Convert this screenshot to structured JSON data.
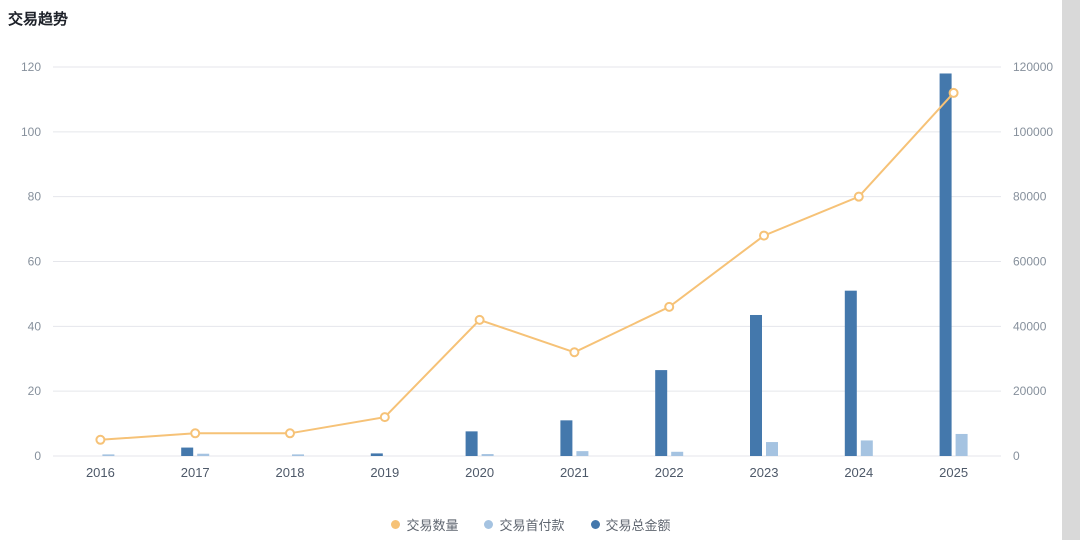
{
  "page": {
    "title": "交易趋势"
  },
  "chart_data": {
    "type": "bar+line",
    "title": "交易趋势",
    "categories": [
      "2016",
      "2017",
      "2018",
      "2019",
      "2020",
      "2021",
      "2022",
      "2023",
      "2024",
      "2025"
    ],
    "series": [
      {
        "name": "交易数量",
        "type": "line",
        "axis": "left",
        "color": "#f6c277",
        "values": [
          5,
          7,
          7,
          12,
          42,
          32,
          46,
          68,
          80,
          112
        ]
      },
      {
        "name": "交易首付款",
        "type": "bar",
        "axis": "right",
        "color": "#a5c3e1",
        "values": [
          500,
          700,
          500,
          0,
          600,
          1500,
          1300,
          4300,
          4800,
          6800
        ]
      },
      {
        "name": "交易总金额",
        "type": "bar",
        "axis": "right",
        "color": "#4478ac",
        "values": [
          0,
          2600,
          0,
          800,
          7600,
          11000,
          26500,
          43500,
          51000,
          118000
        ]
      }
    ],
    "left_axis": {
      "min": 0,
      "max": 120,
      "step": 20,
      "ticks": [
        "0",
        "20",
        "40",
        "60",
        "80",
        "100",
        "120"
      ]
    },
    "right_axis": {
      "min": 0,
      "max": 120000,
      "step": 20000,
      "ticks": [
        "0",
        "20000",
        "40000",
        "60000",
        "80000",
        "100000",
        "120000"
      ]
    },
    "legend": [
      "交易数量",
      "交易首付款",
      "交易总金额"
    ],
    "legend_position": "bottom",
    "grid": true,
    "colors": {
      "grid_line": "#e5e6eb",
      "axis_tick_text": "#86909c",
      "x_label_text": "#4e5969",
      "title_text": "#1d2129"
    }
  }
}
